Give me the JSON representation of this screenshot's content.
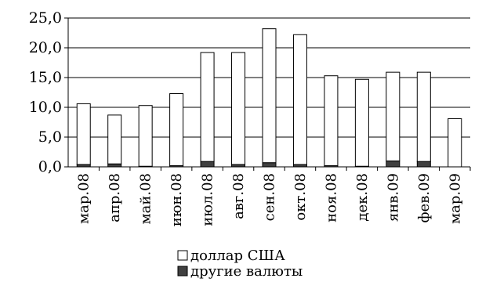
{
  "chart_data": {
    "type": "bar",
    "stacked": true,
    "categories": [
      "мар.08",
      "апр.08",
      "май.08",
      "июн.08",
      "июл.08",
      "авг.08",
      "сен.08",
      "окт.08",
      "ноя.08",
      "дек.08",
      "янв.09",
      "фев.09",
      "мар.09"
    ],
    "series": [
      {
        "name": "другие валюты",
        "color": "#404040",
        "values": [
          0.4,
          0.5,
          0.1,
          0.2,
          0.9,
          0.4,
          0.7,
          0.4,
          0.2,
          0.1,
          1.0,
          0.9,
          0.0
        ]
      },
      {
        "name": "доллар США",
        "color": "#ffffff",
        "values": [
          10.2,
          8.2,
          10.2,
          12.1,
          18.3,
          18.8,
          22.5,
          21.8,
          15.1,
          14.6,
          14.9,
          15.0,
          8.1
        ]
      }
    ],
    "yticks": [
      "0,0",
      "5,0",
      "10,0",
      "15,0",
      "20,0",
      "25,0"
    ],
    "ylim": [
      0,
      25
    ],
    "grid": true,
    "legend": "bottom"
  }
}
